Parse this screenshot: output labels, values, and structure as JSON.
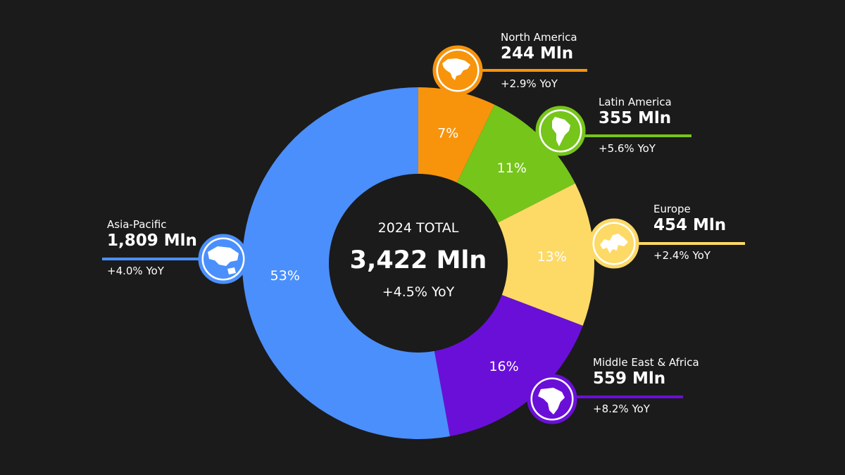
{
  "chart_data": {
    "type": "pie",
    "variant": "donut",
    "center": {
      "title": "2024 TOTAL",
      "value": "3,422 Mln",
      "yoy": "+4.5% YoY"
    },
    "slices": [
      {
        "name": "North America",
        "value": 244,
        "value_label": "244 Mln",
        "percent": 7,
        "percent_label": "7%",
        "yoy": "+2.9% YoY",
        "color": "#f7940c",
        "icon": "north-america-icon"
      },
      {
        "name": "Latin America",
        "value": 355,
        "value_label": "355 Mln",
        "percent": 11,
        "percent_label": "11%",
        "yoy": "+5.6% YoY",
        "color": "#76c51b",
        "icon": "south-america-icon"
      },
      {
        "name": "Europe",
        "value": 454,
        "value_label": "454 Mln",
        "percent": 13,
        "percent_label": "13%",
        "yoy": "+2.4% YoY",
        "color": "#fdd966",
        "icon": "europe-icon"
      },
      {
        "name": "Middle East & Africa",
        "value": 559,
        "value_label": "559 Mln",
        "percent": 16,
        "percent_label": "16%",
        "yoy": "+8.2% YoY",
        "color": "#6a0fd8",
        "icon": "africa-icon"
      },
      {
        "name": "Asia-Pacific",
        "value": 1809,
        "value_label": "1,809 Mln",
        "percent": 53,
        "percent_label": "53%",
        "yoy": "+4.0% YoY",
        "color": "#4b8ffc",
        "icon": "asia-pacific-icon"
      }
    ]
  }
}
